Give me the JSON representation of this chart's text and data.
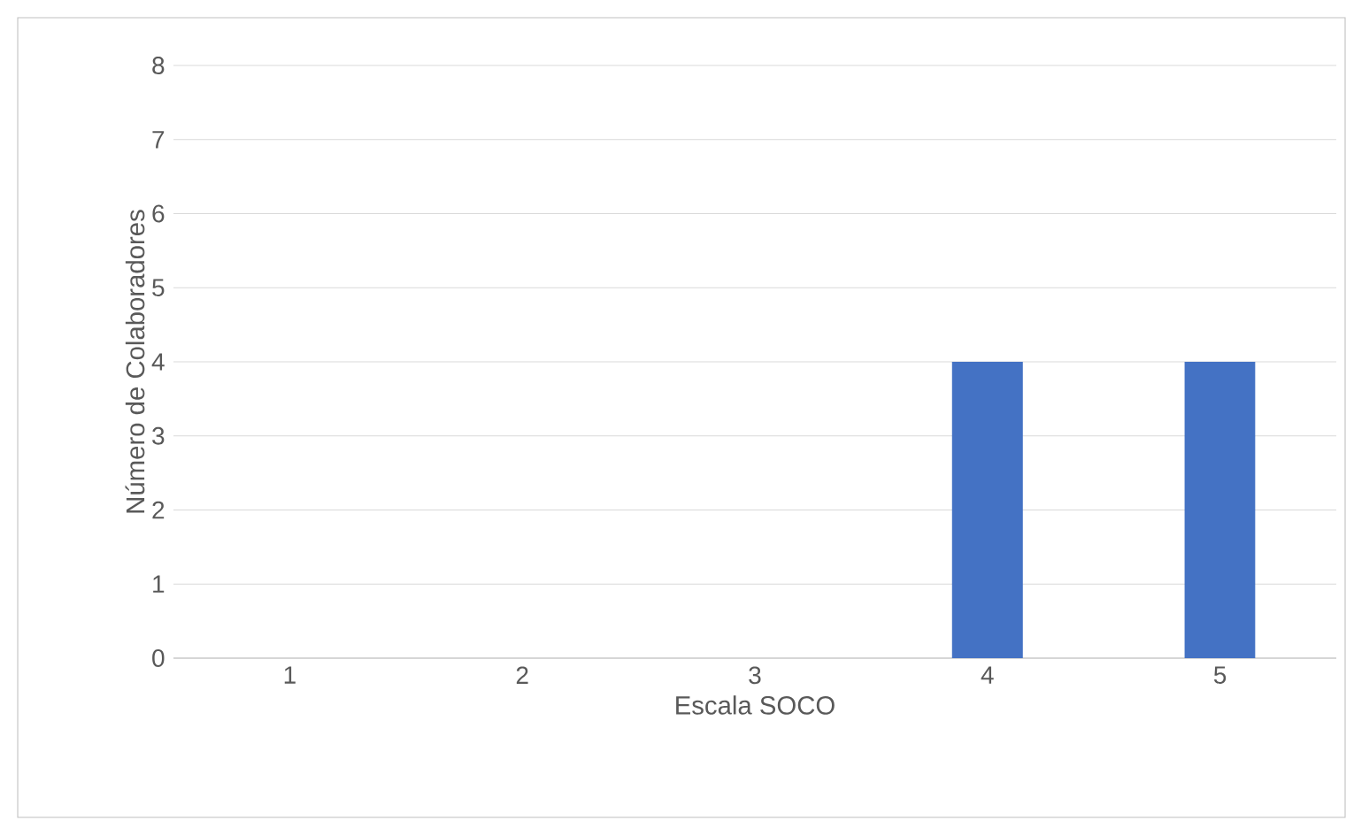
{
  "chart_data": {
    "type": "bar",
    "xlabel": "Escala SOCO",
    "ylabel": "Número de Colaboradores",
    "categories": [
      "1",
      "2",
      "3",
      "4",
      "5"
    ],
    "values": [
      0,
      0,
      0,
      4,
      4
    ],
    "color": "#4472c4",
    "ylim": [
      0,
      8
    ],
    "yticks": [
      0,
      1,
      2,
      3,
      4,
      5,
      6,
      7,
      8
    ],
    "grid": "y"
  }
}
